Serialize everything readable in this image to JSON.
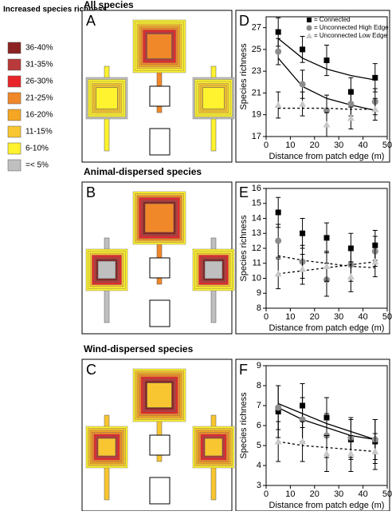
{
  "legend": {
    "title": "Increased species richness",
    "items": [
      {
        "label": "36-40%",
        "color": "#8b2323"
      },
      {
        "label": "31-35%",
        "color": "#b83a3a"
      },
      {
        "label": "26-30%",
        "color": "#e8262a"
      },
      {
        "label": "21-25%",
        "color": "#f0882a"
      },
      {
        "label": "16-20%",
        "color": "#f5a623"
      },
      {
        "label": "11-15%",
        "color": "#f8c630"
      },
      {
        "label": "6-10%",
        "color": "#fff22e"
      },
      {
        "label": "=< 5%",
        "color": "#bfbfbf"
      }
    ]
  },
  "rows": [
    {
      "title": "All species",
      "letter": "A"
    },
    {
      "title": "Animal-dispersed species",
      "letter": "B"
    },
    {
      "title": "Wind-dispersed species",
      "letter": "C"
    }
  ],
  "chart_data": [
    {
      "type": "scatter",
      "label": "D",
      "xlabel": "Distance from patch edge (m)",
      "ylabel": "Species richness",
      "x": [
        5,
        15,
        25,
        35,
        45
      ],
      "xlim": [
        0,
        50
      ],
      "xticks": [
        0,
        10,
        20,
        30,
        40,
        50
      ],
      "ylim": [
        17,
        28
      ],
      "yticks": [
        17,
        19,
        21,
        23,
        25,
        27
      ],
      "legend": "top-right",
      "series": [
        {
          "name": "= Connected",
          "color": "#000000",
          "marker": "square",
          "values": [
            26.6,
            25.0,
            24.0,
            21.1,
            22.4
          ],
          "errors": [
            1.3,
            1.2,
            1.4,
            1.3,
            1.3
          ],
          "trend": {
            "values": [
              26.0,
              24.2,
              23.2,
              22.6,
              22.2
            ],
            "dashed": false
          }
        },
        {
          "name": "= Unconnected High Edge",
          "color": "#8c8c8c",
          "marker": "circle",
          "values": [
            24.8,
            21.8,
            19.4,
            20.0,
            20.2
          ],
          "errors": [
            1.2,
            1.3,
            1.4,
            1.1,
            1.2
          ],
          "trend": {
            "values": [
              24.2,
              21.6,
              20.5,
              19.9,
              19.4
            ],
            "dashed": false
          }
        },
        {
          "name": "= Unconnected Low Edge",
          "color": "#c8c8c8",
          "marker": "triangle",
          "values": [
            19.9,
            20.0,
            18.1,
            18.7,
            19.5
          ],
          "errors": [
            1.2,
            1.1,
            1.1,
            1.0,
            1.0
          ],
          "trend": {
            "values": [
              19.6,
              19.6,
              19.6,
              19.5,
              19.5
            ],
            "dashed": true
          }
        }
      ]
    },
    {
      "type": "scatter",
      "label": "E",
      "xlabel": "Distance from patch edge (m)",
      "ylabel": "Species richness",
      "x": [
        5,
        15,
        25,
        35,
        45
      ],
      "xlim": [
        0,
        50
      ],
      "xticks": [
        0,
        10,
        20,
        30,
        40,
        50
      ],
      "ylim": [
        8,
        16
      ],
      "yticks": [
        8,
        9,
        10,
        11,
        12,
        13,
        14,
        15,
        16
      ],
      "series": [
        {
          "name": "Connected",
          "color": "#000000",
          "marker": "square",
          "values": [
            14.4,
            13.0,
            12.7,
            12.0,
            12.2
          ],
          "errors": [
            1.0,
            1.0,
            1.0,
            1.0,
            1.0
          ]
        },
        {
          "name": "Unconnected High Edge",
          "color": "#8c8c8c",
          "marker": "circle",
          "values": [
            12.5,
            11.1,
            9.9,
            10.9,
            11.8
          ],
          "errors": [
            1.1,
            1.1,
            1.1,
            1.1,
            1.0
          ],
          "trend": {
            "values": [
              11.5,
              11.2,
              11.0,
              10.8,
              10.7
            ],
            "dashed": true
          }
        },
        {
          "name": "Unconnected Low Edge",
          "color": "#c8c8c8",
          "marker": "triangle",
          "values": [
            10.3,
            10.6,
            10.8,
            10.1,
            11.1
          ],
          "errors": [
            1.0,
            1.0,
            1.0,
            1.0,
            1.0
          ],
          "trend": {
            "values": [
              10.3,
              10.5,
              10.7,
              10.9,
              11.1
            ],
            "dashed": true
          }
        }
      ]
    },
    {
      "type": "scatter",
      "label": "F",
      "xlabel": "Distance from patch edge (m)",
      "ylabel": "Species richness",
      "x": [
        5,
        15,
        25,
        35,
        45
      ],
      "xlim": [
        0,
        50
      ],
      "xticks": [
        0,
        10,
        20,
        30,
        40,
        50
      ],
      "ylim": [
        3,
        9
      ],
      "yticks": [
        3,
        4,
        5,
        6,
        7,
        8,
        9
      ],
      "series": [
        {
          "name": "Connected",
          "color": "#000000",
          "marker": "square",
          "values": [
            6.7,
            7.0,
            6.4,
            5.3,
            5.2
          ],
          "errors": [
            1.3,
            1.1,
            1.0,
            1.0,
            1.1
          ],
          "trend": {
            "values": [
              7.1,
              6.6,
              6.1,
              5.7,
              5.3
            ],
            "dashed": false
          }
        },
        {
          "name": "Unconnected High Edge",
          "color": "#8c8c8c",
          "marker": "circle",
          "values": [
            6.9,
            6.3,
            5.5,
            5.4,
            5.3
          ],
          "errors": [
            1.1,
            1.1,
            1.1,
            1.0,
            1.0
          ],
          "trend": {
            "values": [
              6.9,
              6.3,
              5.9,
              5.5,
              5.3
            ],
            "dashed": false
          }
        },
        {
          "name": "Unconnected Low Edge",
          "color": "#c8c8c8",
          "marker": "triangle",
          "values": [
            5.2,
            5.2,
            4.6,
            4.6,
            4.7
          ],
          "errors": [
            1.0,
            1.0,
            0.9,
            0.9,
            0.9
          ],
          "trend": {
            "values": [
              5.2,
              5.0,
              4.9,
              4.8,
              4.7
            ],
            "dashed": true
          }
        }
      ]
    }
  ]
}
